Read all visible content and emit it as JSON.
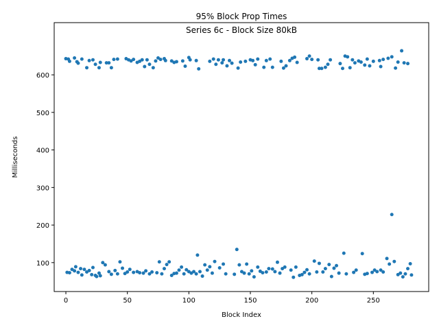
{
  "chart_data": {
    "type": "scatter",
    "title": "95% Block Prop Times",
    "subtitle": "Series 6c - Block Size 80kB",
    "xlabel": "Block Index",
    "ylabel": "Milliseconds",
    "color": "#1f77b4",
    "xlim": [
      -9.5,
      295
    ],
    "ylim": [
      23,
      739
    ],
    "xticks": [
      0,
      50,
      100,
      150,
      200,
      250
    ],
    "yticks": [
      100,
      200,
      300,
      400,
      500,
      600
    ],
    "x": [
      0,
      2,
      3,
      7,
      9,
      10,
      13,
      17,
      19,
      22,
      24,
      27,
      28,
      33,
      35,
      37,
      39,
      42,
      49,
      51,
      53,
      55,
      58,
      60,
      62,
      64,
      66,
      68,
      71,
      73,
      75,
      77,
      80,
      81,
      86,
      88,
      90,
      95,
      97,
      100,
      101,
      106,
      108,
      117,
      120,
      122,
      124,
      127,
      128,
      131,
      133,
      135,
      140,
      142,
      146,
      150,
      152,
      154,
      156,
      161,
      163,
      166,
      168,
      175,
      177,
      179,
      182,
      184,
      186,
      188,
      196,
      198,
      200,
      205,
      206,
      208,
      211,
      213,
      215,
      223,
      225,
      227,
      229,
      231,
      233,
      235,
      238,
      240,
      243,
      245,
      247,
      250,
      255,
      256,
      258,
      262,
      265,
      268,
      270,
      273,
      275,
      278,
      1,
      3,
      5,
      7,
      8,
      10,
      12,
      13,
      15,
      17,
      19,
      21,
      22,
      24,
      25,
      27,
      28,
      30,
      32,
      35,
      37,
      40,
      42,
      44,
      46,
      48,
      50,
      52,
      55,
      58,
      60,
      63,
      65,
      68,
      70,
      74,
      76,
      78,
      80,
      82,
      84,
      86,
      88,
      90,
      92,
      94,
      96,
      98,
      100,
      102,
      104,
      106,
      107,
      109,
      111,
      113,
      115,
      117,
      119,
      121,
      125,
      128,
      130,
      137,
      139,
      141,
      143,
      145,
      147,
      149,
      151,
      153,
      156,
      158,
      160,
      163,
      165,
      168,
      170,
      172,
      174,
      176,
      178,
      183,
      185,
      187,
      190,
      192,
      194,
      196,
      198,
      202,
      204,
      206,
      209,
      211,
      214,
      216,
      218,
      220,
      222,
      226,
      228,
      234,
      236,
      241,
      243,
      245,
      249,
      251,
      253,
      256,
      258,
      261,
      263,
      265,
      267,
      270,
      272,
      274,
      276,
      278,
      280,
      281
    ],
    "values": [
      643,
      642,
      636,
      645,
      635,
      631,
      642,
      619,
      638,
      640,
      628,
      619,
      633,
      632,
      632,
      619,
      641,
      642,
      643,
      640,
      637,
      641,
      633,
      636,
      640,
      622,
      640,
      628,
      619,
      637,
      645,
      641,
      643,
      638,
      637,
      633,
      635,
      637,
      623,
      646,
      640,
      638,
      616,
      636,
      642,
      628,
      640,
      632,
      640,
      624,
      638,
      631,
      618,
      634,
      636,
      640,
      638,
      627,
      642,
      620,
      638,
      642,
      620,
      636,
      618,
      624,
      638,
      644,
      647,
      633,
      643,
      650,
      641,
      640,
      617,
      617,
      620,
      628,
      640,
      630,
      617,
      650,
      648,
      619,
      640,
      632,
      637,
      634,
      626,
      642,
      624,
      636,
      638,
      622,
      641,
      644,
      648,
      618,
      634,
      664,
      632,
      630,
      74,
      73,
      82,
      78,
      89,
      74,
      84,
      67,
      82,
      75,
      79,
      68,
      87,
      66,
      63,
      72,
      65,
      100,
      94,
      76,
      69,
      79,
      70,
      102,
      85,
      71,
      75,
      82,
      74,
      76,
      73,
      72,
      78,
      70,
      75,
      73,
      102,
      70,
      84,
      95,
      102,
      66,
      71,
      72,
      80,
      88,
      70,
      81,
      76,
      72,
      76,
      70,
      120,
      76,
      64,
      94,
      80,
      89,
      72,
      103,
      86,
      96,
      70,
      69,
      135,
      94,
      76,
      72,
      96,
      70,
      78,
      62,
      88,
      77,
      73,
      75,
      84,
      83,
      76,
      101,
      72,
      84,
      88,
      80,
      61,
      88,
      66,
      68,
      74,
      81,
      70,
      104,
      75,
      98,
      75,
      84,
      95,
      63,
      85,
      92,
      72,
      125,
      70,
      74,
      80,
      124,
      69,
      71,
      74,
      80,
      76,
      80,
      75,
      111,
      96,
      228,
      103,
      68,
      72,
      62,
      70,
      84,
      97,
      67
    ]
  }
}
